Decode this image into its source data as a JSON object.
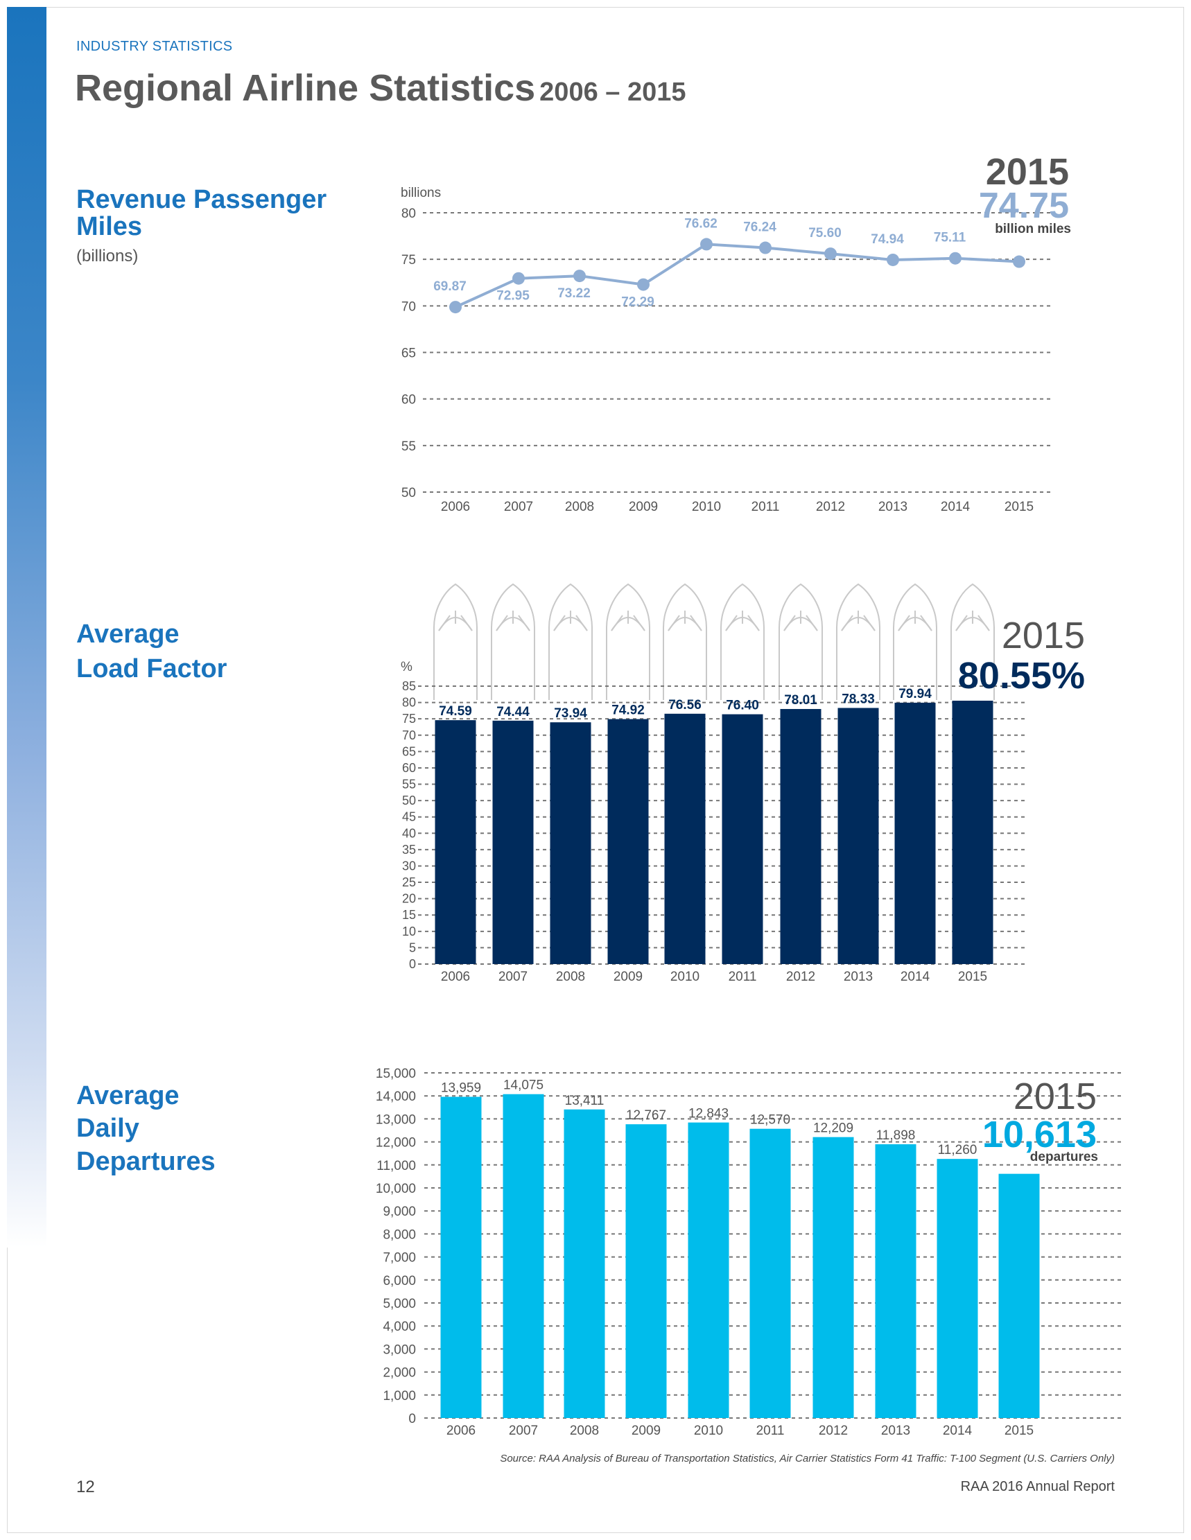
{
  "header": {
    "kicker": "INDUSTRY STATISTICS",
    "title": "Regional Airline Statistics",
    "years": "2006 – 2015"
  },
  "sections": {
    "rpm": {
      "title_line1": "Revenue Passenger",
      "title_line2": "Miles",
      "subtitle": "(billions)"
    },
    "load": {
      "title_line1": "Average",
      "title_line2": "Load Factor"
    },
    "departures": {
      "title_line1": "Average",
      "title_line2": "Daily",
      "title_line3": "Departures"
    }
  },
  "chart_data": [
    {
      "type": "line",
      "title": "Revenue Passenger Miles",
      "ylabel": "billions",
      "categories": [
        "2006",
        "2007",
        "2008",
        "2009",
        "2010",
        "2011",
        "2012",
        "2013",
        "2014",
        "2015"
      ],
      "values": [
        69.87,
        72.95,
        73.22,
        72.29,
        76.62,
        76.24,
        75.6,
        74.94,
        75.11,
        74.75
      ],
      "labels": [
        "69.87",
        "72.95",
        "73.22",
        "72.29",
        "76.62",
        "76.24",
        "75.60",
        "74.94",
        "75.11",
        ""
      ],
      "ylim": [
        50,
        80
      ],
      "yticks": [
        "50",
        "55",
        "60",
        "65",
        "70",
        "75",
        "80"
      ],
      "highlight": {
        "year": "2015",
        "value": "74.75",
        "unit": "billion miles"
      },
      "colors": {
        "line": "#8fadd3",
        "label": "#8fadd3",
        "highlight_year": "#555555",
        "highlight_value": "#8fadd3"
      }
    },
    {
      "type": "bar",
      "title": "Average Load Factor",
      "ylabel": "%",
      "categories": [
        "2006",
        "2007",
        "2008",
        "2009",
        "2010",
        "2011",
        "2012",
        "2013",
        "2014",
        "2015"
      ],
      "values": [
        74.59,
        74.44,
        73.94,
        74.92,
        76.56,
        76.4,
        78.01,
        78.33,
        79.94,
        80.55
      ],
      "labels": [
        "74.59",
        "74.44",
        "73.94",
        "74.92",
        "76.56",
        "76.40",
        "78.01",
        "78.33",
        "79.94",
        ""
      ],
      "ylim": [
        0,
        85
      ],
      "yticks": [
        "0",
        "5",
        "10",
        "15",
        "20",
        "25",
        "30",
        "35",
        "40",
        "45",
        "50",
        "55",
        "60",
        "65",
        "70",
        "75",
        "80",
        "85"
      ],
      "highlight": {
        "year": "2015",
        "value": "80.55%"
      },
      "colors": {
        "bar": "#002b5c",
        "label": "#002b5c",
        "highlight_year": "#555555",
        "highlight_value": "#002b5c"
      }
    },
    {
      "type": "bar",
      "title": "Average Daily Departures",
      "categories": [
        "2006",
        "2007",
        "2008",
        "2009",
        "2010",
        "2011",
        "2012",
        "2013",
        "2014",
        "2015"
      ],
      "values": [
        13959,
        14075,
        13411,
        12767,
        12843,
        12570,
        12209,
        11898,
        11260,
        10613
      ],
      "labels": [
        "13,959",
        "14,075",
        "13,411",
        "12,767",
        "12,843",
        "12,570",
        "12,209",
        "11,898",
        "11,260",
        ""
      ],
      "ylim": [
        0,
        15000
      ],
      "yticks": [
        "0",
        "1,000",
        "2,000",
        "3,000",
        "4,000",
        "5,000",
        "6,000",
        "7,000",
        "8,000",
        "9,000",
        "10,000",
        "11,000",
        "12,000",
        "13,000",
        "14,000",
        "15,000"
      ],
      "highlight": {
        "year": "2015",
        "value": "10,613",
        "unit": "departures"
      },
      "colors": {
        "bar": "#00bceb",
        "label": "#555555",
        "highlight_year": "#555555",
        "highlight_value": "#00a9e0"
      }
    }
  ],
  "footer": {
    "source": "Source: RAA Analysis of Bureau of Transportation Statistics, Air Carrier Statistics Form 41 Traffic: T-100 Segment (U.S. Carriers Only)",
    "page_number": "12",
    "report": "RAA 2016 Annual Report"
  }
}
